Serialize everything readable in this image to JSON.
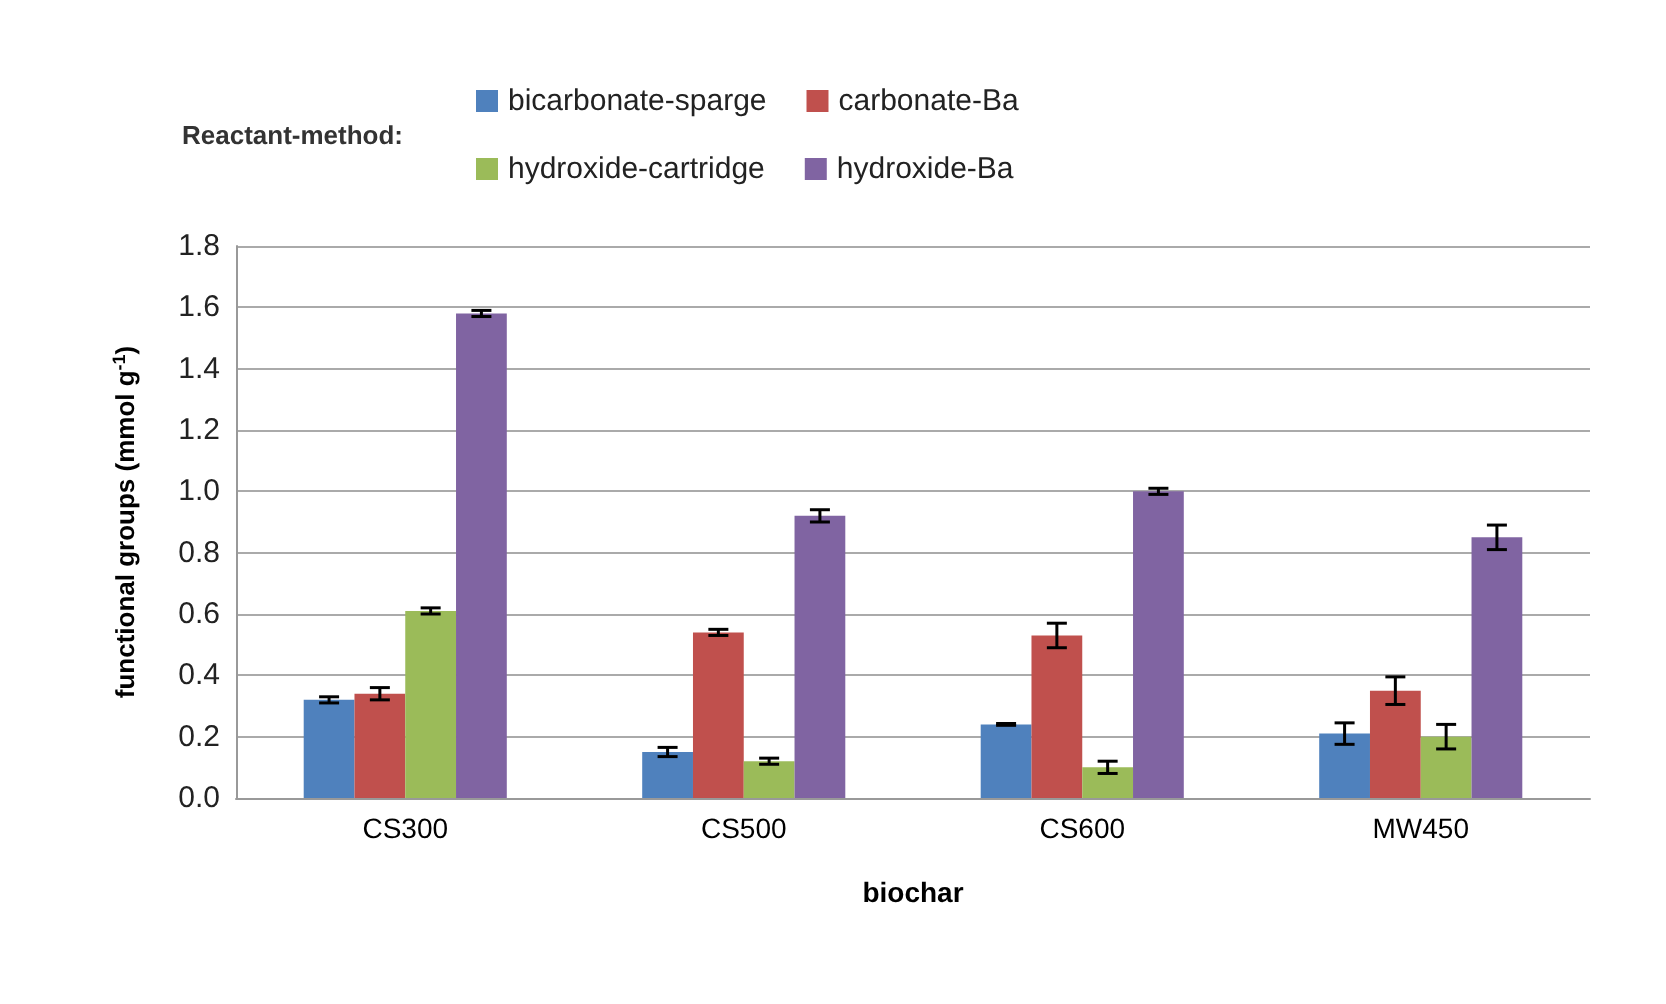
{
  "chart_data": {
    "type": "bar",
    "xlabel": "biochar",
    "ylabel": "functional groups (mmol g$^{-1}$)",
    "legend_title": "Reactant-method:",
    "categories": [
      "CS300",
      "CS500",
      "CS600",
      "MW450"
    ],
    "series": [
      {
        "name": "bicarbonate-sparge",
        "color": "#4f81bd",
        "values": [
          0.32,
          0.15,
          0.24,
          0.21
        ],
        "errors": [
          0.01,
          0.015,
          0.003,
          0.035
        ]
      },
      {
        "name": "carbonate-Ba",
        "color": "#c0504d",
        "values": [
          0.34,
          0.54,
          0.53,
          0.35
        ],
        "errors": [
          0.02,
          0.01,
          0.04,
          0.045
        ]
      },
      {
        "name": "hydroxide-cartridge",
        "color": "#9bbb59",
        "values": [
          0.61,
          0.12,
          0.1,
          0.2
        ],
        "errors": [
          0.01,
          0.01,
          0.02,
          0.04
        ]
      },
      {
        "name": "hydroxide-Ba",
        "color": "#8064a2",
        "values": [
          1.58,
          0.92,
          1.0,
          0.85
        ],
        "errors": [
          0.01,
          0.02,
          0.01,
          0.04
        ]
      }
    ],
    "ylim": [
      0,
      1.8
    ],
    "yticks": [
      {
        "value": 0,
        "label": "0.0"
      },
      0.2,
      0.4,
      0.6,
      0.8,
      {
        "value": 1,
        "label": "1.0"
      },
      1.2,
      1.4,
      1.6,
      1.8
    ],
    "grid": "y",
    "legend": "top"
  }
}
